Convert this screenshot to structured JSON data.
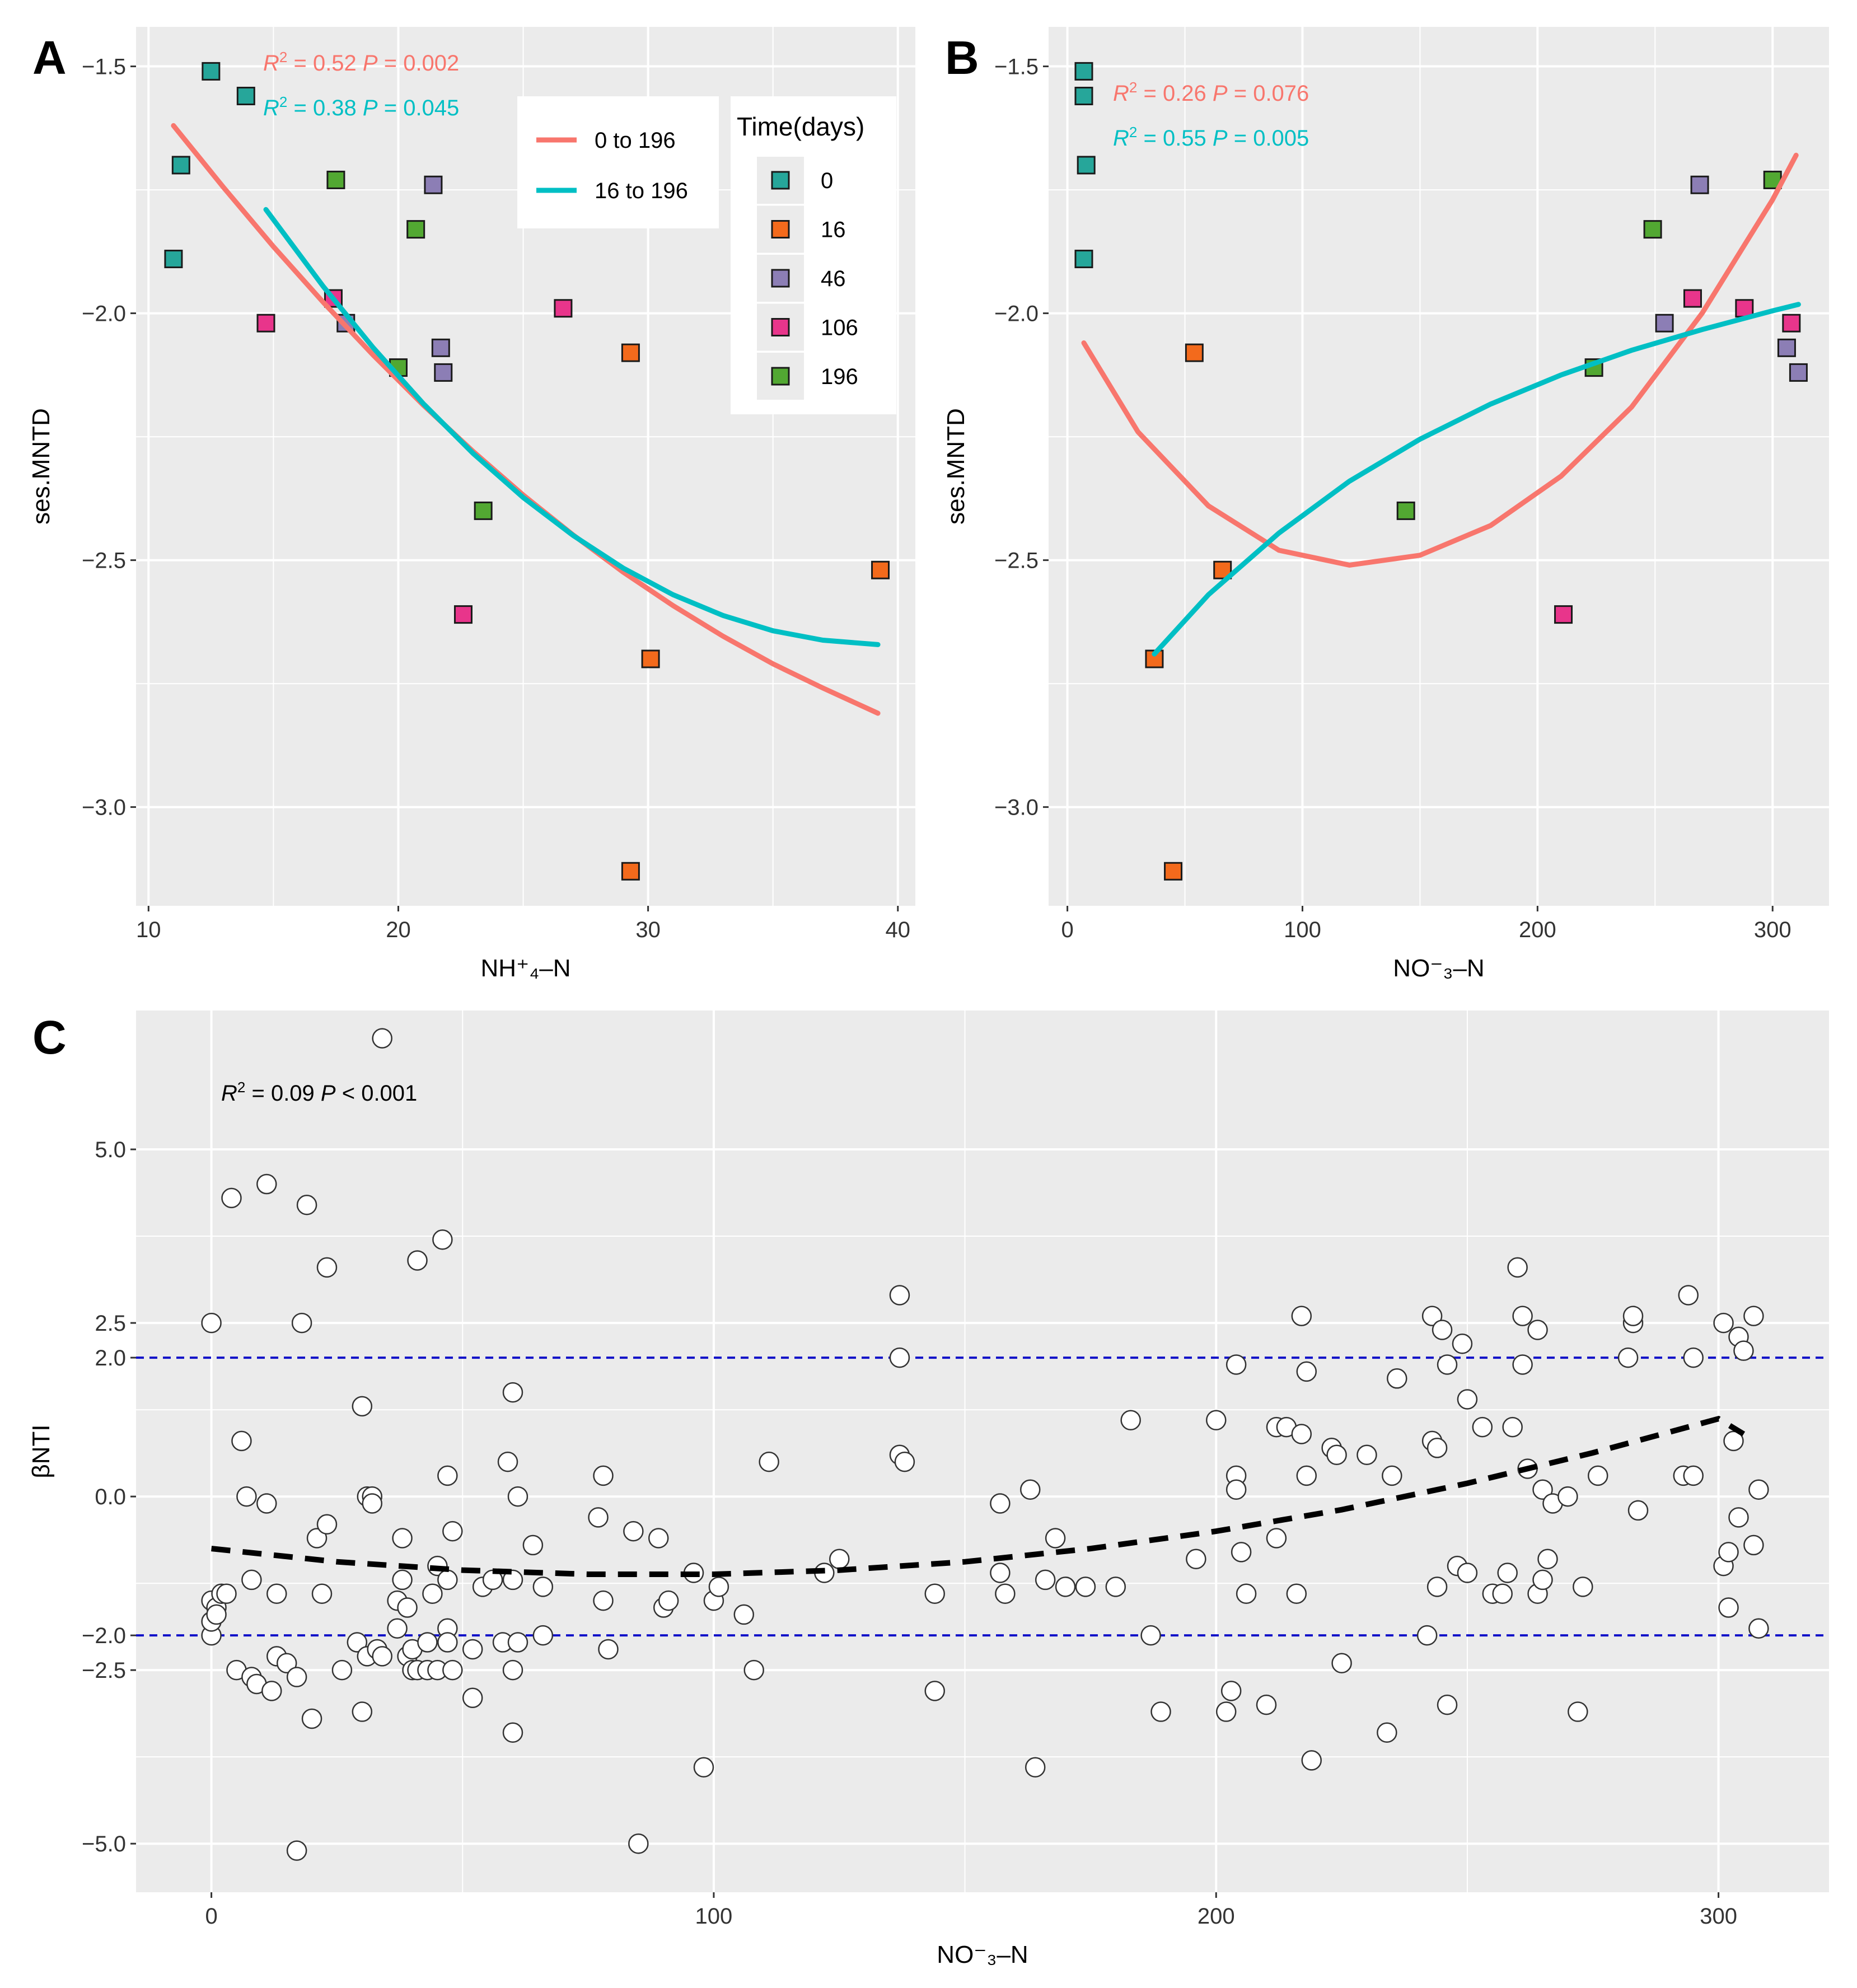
{
  "colors": {
    "line_0_196": "#F8766D",
    "line_16_196": "#00BFC4",
    "t0": "#26A69A",
    "t16": "#F36A1C",
    "t46": "#8C7EB5",
    "t106": "#E8358B",
    "t196": "#52A832",
    "guide": "#1010C8",
    "panel_bg": "#EBEBEB",
    "grid": "#FFFFFF"
  },
  "legend": {
    "lines": [
      {
        "label": "0 to 196",
        "color_key": "line_0_196"
      },
      {
        "label": "16 to 196",
        "color_key": "line_16_196"
      }
    ],
    "time_title": "Time(days)",
    "time_items": [
      {
        "label": "0",
        "color_key": "t0"
      },
      {
        "label": "16",
        "color_key": "t16"
      },
      {
        "label": "46",
        "color_key": "t46"
      },
      {
        "label": "106",
        "color_key": "t106"
      },
      {
        "label": "196",
        "color_key": "t196"
      }
    ]
  },
  "chart_data": [
    {
      "id": "A",
      "type": "scatter",
      "panel_label": "A",
      "xlabel": "NH⁺₄–N",
      "ylabel": "ses.MNTD",
      "xlim": [
        9.5,
        40.7
      ],
      "ylim": [
        -3.2,
        -1.42
      ],
      "xticks": [
        10,
        20,
        30,
        40
      ],
      "xtick_labels": [
        "10",
        "20",
        "30",
        "40"
      ],
      "yticks": [
        -3.0,
        -2.5,
        -2.0,
        -1.5
      ],
      "ytick_labels": [
        "−3.0",
        "−2.5",
        "−2.0",
        "−1.5"
      ],
      "annotations": [
        {
          "r2": "0.52",
          "p_sym": "=",
          "p": "0.002",
          "color_key": "line_0_196"
        },
        {
          "r2": "0.38",
          "p_sym": "=",
          "p": "0.045",
          "color_key": "line_16_196"
        }
      ],
      "points": [
        {
          "x": 11.0,
          "y": -1.89,
          "t": "0"
        },
        {
          "x": 11.3,
          "y": -1.7,
          "t": "0"
        },
        {
          "x": 12.5,
          "y": -1.51,
          "t": "0"
        },
        {
          "x": 13.9,
          "y": -1.56,
          "t": "0"
        },
        {
          "x": 14.7,
          "y": -2.02,
          "t": "106"
        },
        {
          "x": 17.4,
          "y": -1.97,
          "t": "106"
        },
        {
          "x": 17.5,
          "y": -1.73,
          "t": "196"
        },
        {
          "x": 17.9,
          "y": -2.02,
          "t": "46"
        },
        {
          "x": 20.0,
          "y": -2.11,
          "t": "196"
        },
        {
          "x": 20.7,
          "y": -1.83,
          "t": "196"
        },
        {
          "x": 21.4,
          "y": -1.74,
          "t": "46"
        },
        {
          "x": 21.7,
          "y": -2.07,
          "t": "46"
        },
        {
          "x": 21.8,
          "y": -2.12,
          "t": "46"
        },
        {
          "x": 22.6,
          "y": -2.61,
          "t": "106"
        },
        {
          "x": 23.4,
          "y": -2.4,
          "t": "196"
        },
        {
          "x": 26.6,
          "y": -1.99,
          "t": "106"
        },
        {
          "x": 29.3,
          "y": -2.08,
          "t": "16"
        },
        {
          "x": 29.3,
          "y": -3.13,
          "t": "16"
        },
        {
          "x": 30.1,
          "y": -2.7,
          "t": "16"
        },
        {
          "x": 39.3,
          "y": -2.52,
          "t": "16"
        }
      ],
      "series": [
        {
          "name": "0 to 196",
          "color_key": "line_0_196",
          "x": [
            11,
            13,
            15,
            17,
            19,
            21,
            23,
            25,
            27,
            29,
            31,
            33,
            35,
            37,
            39.2
          ],
          "y": [
            -1.62,
            -1.745,
            -1.865,
            -1.978,
            -2.085,
            -2.186,
            -2.28,
            -2.368,
            -2.449,
            -2.524,
            -2.592,
            -2.654,
            -2.71,
            -2.759,
            -2.81
          ]
        },
        {
          "name": "16 to 196",
          "color_key": "line_16_196",
          "x": [
            14.7,
            17,
            19,
            21,
            23,
            25,
            27,
            29,
            31,
            33,
            35,
            37,
            39.2
          ],
          "y": [
            -1.79,
            -1.946,
            -2.07,
            -2.183,
            -2.284,
            -2.373,
            -2.45,
            -2.516,
            -2.57,
            -2.612,
            -2.643,
            -2.662,
            -2.671
          ]
        }
      ]
    },
    {
      "id": "B",
      "type": "scatter",
      "panel_label": "B",
      "xlabel": "NO⁻₃–N",
      "ylabel": "ses.MNTD",
      "xlim": [
        -8,
        324
      ],
      "ylim": [
        -3.2,
        -1.42
      ],
      "xticks": [
        0,
        100,
        200,
        300
      ],
      "xtick_labels": [
        "0",
        "100",
        "200",
        "300"
      ],
      "yticks": [
        -3.0,
        -2.5,
        -2.0,
        -1.5
      ],
      "ytick_labels": [
        "−3.0",
        "−2.5",
        "−2.0",
        "−1.5"
      ],
      "annotations": [
        {
          "r2": "0.26",
          "p_sym": "=",
          "p": "0.076",
          "color_key": "line_0_196"
        },
        {
          "r2": "0.55",
          "p_sym": "=",
          "p": "0.005",
          "color_key": "line_16_196"
        }
      ],
      "points": [
        {
          "x": 7,
          "y": -1.51,
          "t": "0"
        },
        {
          "x": 7,
          "y": -1.56,
          "t": "0"
        },
        {
          "x": 8,
          "y": -1.7,
          "t": "0"
        },
        {
          "x": 7,
          "y": -1.89,
          "t": "0"
        },
        {
          "x": 37,
          "y": -2.7,
          "t": "16"
        },
        {
          "x": 45,
          "y": -3.13,
          "t": "16"
        },
        {
          "x": 54,
          "y": -2.08,
          "t": "16"
        },
        {
          "x": 66,
          "y": -2.52,
          "t": "16"
        },
        {
          "x": 144,
          "y": -2.4,
          "t": "196"
        },
        {
          "x": 211,
          "y": -2.61,
          "t": "106"
        },
        {
          "x": 224,
          "y": -2.11,
          "t": "196"
        },
        {
          "x": 249,
          "y": -1.83,
          "t": "196"
        },
        {
          "x": 254,
          "y": -2.02,
          "t": "46"
        },
        {
          "x": 266,
          "y": -1.97,
          "t": "106"
        },
        {
          "x": 269,
          "y": -1.74,
          "t": "46"
        },
        {
          "x": 288,
          "y": -1.99,
          "t": "106"
        },
        {
          "x": 300,
          "y": -1.73,
          "t": "196"
        },
        {
          "x": 306,
          "y": -2.07,
          "t": "46"
        },
        {
          "x": 308,
          "y": -2.02,
          "t": "106"
        },
        {
          "x": 311,
          "y": -2.12,
          "t": "46"
        }
      ],
      "series": [
        {
          "name": "0 to 196",
          "color_key": "line_0_196",
          "x": [
            7,
            30,
            60,
            90,
            120,
            150,
            180,
            210,
            240,
            270,
            300,
            310
          ],
          "y": [
            -2.06,
            -2.24,
            -2.39,
            -2.48,
            -2.51,
            -2.49,
            -2.43,
            -2.33,
            -2.19,
            -2.0,
            -1.77,
            -1.68
          ]
        },
        {
          "name": "16 to 196",
          "color_key": "line_16_196",
          "x": [
            37,
            60,
            90,
            120,
            150,
            180,
            210,
            240,
            270,
            300,
            311
          ],
          "y": [
            -2.69,
            -2.57,
            -2.445,
            -2.34,
            -2.255,
            -2.184,
            -2.125,
            -2.075,
            -2.033,
            -1.995,
            -1.982
          ]
        }
      ]
    },
    {
      "id": "C",
      "type": "scatter",
      "panel_label": "C",
      "xlabel": "NO⁻₃–N",
      "ylabel": "βNTI",
      "xlim": [
        -15,
        322
      ],
      "ylim": [
        -5.7,
        7.0
      ],
      "xticks": [
        0,
        100,
        200,
        300
      ],
      "xtick_labels": [
        "0",
        "100",
        "200",
        "300"
      ],
      "yticks": [
        -5.0,
        -2.5,
        -2.0,
        0.0,
        2.0,
        2.5,
        5.0
      ],
      "ytick_labels": [
        "−5.0",
        "−2.5",
        "−2.0",
        "0.0",
        "2.0",
        "2.5",
        "5.0"
      ],
      "guides": [
        2.0,
        -2.0
      ],
      "annotations": [
        {
          "r2": "0.09",
          "p_sym": "<",
          "p": "0.001",
          "color_key": "black"
        }
      ],
      "points": [
        [
          0,
          -2.0
        ],
        [
          0,
          -1.5
        ],
        [
          0,
          -1.8
        ],
        [
          1,
          -1.6
        ],
        [
          1,
          -1.7
        ],
        [
          2,
          -1.4
        ],
        [
          3,
          -1.4
        ],
        [
          0,
          2.5
        ],
        [
          4,
          4.3
        ],
        [
          5,
          -2.5
        ],
        [
          6,
          0.8
        ],
        [
          7,
          0.0
        ],
        [
          8,
          -2.6
        ],
        [
          8,
          -1.2
        ],
        [
          9,
          -2.7
        ],
        [
          11,
          -0.1
        ],
        [
          11,
          4.5
        ],
        [
          12,
          -2.8
        ],
        [
          13,
          -1.4
        ],
        [
          13,
          -2.3
        ],
        [
          15,
          -2.4
        ],
        [
          17,
          -2.6
        ],
        [
          17,
          -5.1
        ],
        [
          18,
          2.5
        ],
        [
          19,
          4.2
        ],
        [
          20,
          -3.2
        ],
        [
          21,
          -0.6
        ],
        [
          22,
          -1.4
        ],
        [
          23,
          -0.4
        ],
        [
          23,
          3.3
        ],
        [
          26,
          -2.5
        ],
        [
          29,
          -2.1
        ],
        [
          30,
          -3.1
        ],
        [
          30,
          1.3
        ],
        [
          31,
          0.0
        ],
        [
          31,
          -2.3
        ],
        [
          32,
          0.0
        ],
        [
          32,
          -0.1
        ],
        [
          33,
          -2.2
        ],
        [
          34,
          6.6
        ],
        [
          34,
          -2.3
        ],
        [
          37,
          -1.5
        ],
        [
          37,
          -1.9
        ],
        [
          38,
          -1.2
        ],
        [
          38,
          -0.6
        ],
        [
          39,
          -2.3
        ],
        [
          39,
          -1.6
        ],
        [
          40,
          -2.2
        ],
        [
          40,
          -2.5
        ],
        [
          41,
          -2.5
        ],
        [
          41,
          3.4
        ],
        [
          43,
          -2.1
        ],
        [
          43,
          -2.5
        ],
        [
          44,
          -1.4
        ],
        [
          45,
          -1.0
        ],
        [
          45,
          -2.5
        ],
        [
          46,
          3.7
        ],
        [
          47,
          -1.2
        ],
        [
          47,
          -1.9
        ],
        [
          47,
          0.3
        ],
        [
          47,
          -2.1
        ],
        [
          48,
          -0.5
        ],
        [
          48,
          -2.5
        ],
        [
          52,
          -2.2
        ],
        [
          52,
          -2.9
        ],
        [
          54,
          -1.3
        ],
        [
          56,
          -1.2
        ],
        [
          58,
          -2.1
        ],
        [
          59,
          0.5
        ],
        [
          60,
          -1.2
        ],
        [
          60,
          -3.4
        ],
        [
          60,
          -2.5
        ],
        [
          60,
          1.5
        ],
        [
          61,
          -2.1
        ],
        [
          61,
          0.0
        ],
        [
          64,
          -0.7
        ],
        [
          66,
          -1.3
        ],
        [
          66,
          -2.0
        ],
        [
          77,
          -0.3
        ],
        [
          78,
          0.3
        ],
        [
          78,
          -1.5
        ],
        [
          79,
          -2.2
        ],
        [
          84,
          -0.5
        ],
        [
          85,
          -5.0
        ],
        [
          89,
          -0.6
        ],
        [
          90,
          -1.6
        ],
        [
          91,
          -1.5
        ],
        [
          96,
          -1.1
        ],
        [
          98,
          -3.9
        ],
        [
          100,
          -1.5
        ],
        [
          101,
          -1.3
        ],
        [
          106,
          -1.7
        ],
        [
          108,
          -2.5
        ],
        [
          111,
          0.5
        ],
        [
          122,
          -1.1
        ],
        [
          125,
          -0.9
        ],
        [
          137,
          0.6
        ],
        [
          137,
          2.9
        ],
        [
          137,
          2.0
        ],
        [
          138,
          0.5
        ],
        [
          144,
          -1.4
        ],
        [
          144,
          -2.8
        ],
        [
          157,
          -0.1
        ],
        [
          157,
          -1.1
        ],
        [
          158,
          -1.4
        ],
        [
          163,
          0.1
        ],
        [
          164,
          -3.9
        ],
        [
          166,
          -1.2
        ],
        [
          168,
          -0.6
        ],
        [
          170,
          -1.3
        ],
        [
          174,
          -1.3
        ],
        [
          180,
          -1.3
        ],
        [
          183,
          1.1
        ],
        [
          187,
          -2.0
        ],
        [
          189,
          -3.1
        ],
        [
          196,
          -0.9
        ],
        [
          200,
          1.1
        ],
        [
          202,
          -3.1
        ],
        [
          203,
          -2.8
        ],
        [
          204,
          0.3
        ],
        [
          204,
          0.1
        ],
        [
          204,
          1.9
        ],
        [
          205,
          -0.8
        ],
        [
          206,
          -1.4
        ],
        [
          210,
          -3.0
        ],
        [
          212,
          1.0
        ],
        [
          212,
          -0.6
        ],
        [
          214,
          1.0
        ],
        [
          216,
          -1.4
        ],
        [
          217,
          0.9
        ],
        [
          217,
          2.6
        ],
        [
          218,
          1.8
        ],
        [
          218,
          0.3
        ],
        [
          219,
          -3.8
        ],
        [
          223,
          0.7
        ],
        [
          224,
          0.6
        ],
        [
          225,
          -2.4
        ],
        [
          230,
          0.6
        ],
        [
          234,
          -3.4
        ],
        [
          235,
          0.3
        ],
        [
          236,
          1.7
        ],
        [
          242,
          -2.0
        ],
        [
          243,
          0.8
        ],
        [
          243,
          2.6
        ],
        [
          244,
          -1.3
        ],
        [
          245,
          2.4
        ],
        [
          244,
          0.7
        ],
        [
          246,
          1.9
        ],
        [
          246,
          -3.0
        ],
        [
          248,
          -1.0
        ],
        [
          249,
          2.2
        ],
        [
          250,
          1.4
        ],
        [
          250,
          -1.1
        ],
        [
          253,
          1.0
        ],
        [
          255,
          -1.4
        ],
        [
          257,
          -1.4
        ],
        [
          258,
          -1.1
        ],
        [
          259,
          1.0
        ],
        [
          260,
          3.3
        ],
        [
          261,
          1.9
        ],
        [
          261,
          2.6
        ],
        [
          262,
          0.4
        ],
        [
          264,
          -1.4
        ],
        [
          264,
          2.4
        ],
        [
          265,
          -1.2
        ],
        [
          265,
          0.1
        ],
        [
          266,
          -0.9
        ],
        [
          267,
          -0.1
        ],
        [
          270,
          0.0
        ],
        [
          272,
          -3.1
        ],
        [
          273,
          -1.3
        ],
        [
          276,
          0.3
        ],
        [
          282,
          2.0
        ],
        [
          283,
          2.5
        ],
        [
          283,
          2.6
        ],
        [
          284,
          -0.2
        ],
        [
          293,
          0.3
        ],
        [
          294,
          2.9
        ],
        [
          295,
          2.0
        ],
        [
          295,
          0.3
        ],
        [
          301,
          -1.0
        ],
        [
          301,
          2.5
        ],
        [
          302,
          -0.8
        ],
        [
          302,
          -1.6
        ],
        [
          303,
          0.8
        ],
        [
          304,
          2.3
        ],
        [
          304,
          -0.3
        ],
        [
          305,
          2.1
        ],
        [
          307,
          2.6
        ],
        [
          307,
          -0.7
        ],
        [
          308,
          0.1
        ],
        [
          308,
          -1.9
        ]
      ],
      "series": [
        {
          "name": "fit",
          "style": "dashed",
          "color_key": "black",
          "x": [
            0,
            25,
            50,
            75,
            100,
            125,
            150,
            175,
            200,
            225,
            250,
            275,
            300,
            305
          ],
          "y": [
            -0.75,
            -0.94,
            -1.06,
            -1.12,
            -1.12,
            -1.06,
            -0.94,
            -0.75,
            -0.5,
            -0.19,
            0.19,
            0.63,
            1.12,
            0.9
          ]
        }
      ]
    }
  ]
}
